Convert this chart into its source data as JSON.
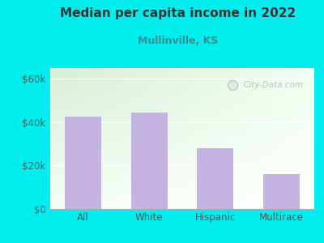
{
  "title": "Median per capita income in 2022",
  "subtitle": "Mullinville, KS",
  "categories": [
    "All",
    "White",
    "Hispanic",
    "Multirace"
  ],
  "values": [
    42500,
    44500,
    28000,
    16000
  ],
  "bar_color": "#c5b4e3",
  "outer_bg": "#00eeee",
  "chart_bg_topleft": "#d8eed8",
  "chart_bg_topright": "#f0fff0",
  "chart_bg_bottomleft": "#f5fff5",
  "chart_bg_bottomright": "#ffffff",
  "title_color": "#333333",
  "subtitle_color": "#448888",
  "ytick_color": "#446666",
  "xtick_color": "#555555",
  "yticks": [
    0,
    20000,
    40000,
    60000
  ],
  "ytick_labels": [
    "$0",
    "$20k",
    "$40k",
    "$60k"
  ],
  "ylim": [
    0,
    65000
  ],
  "grid_color": "#ccddcc",
  "watermark_text": "City-Data.com",
  "watermark_color": "#aabbbb"
}
